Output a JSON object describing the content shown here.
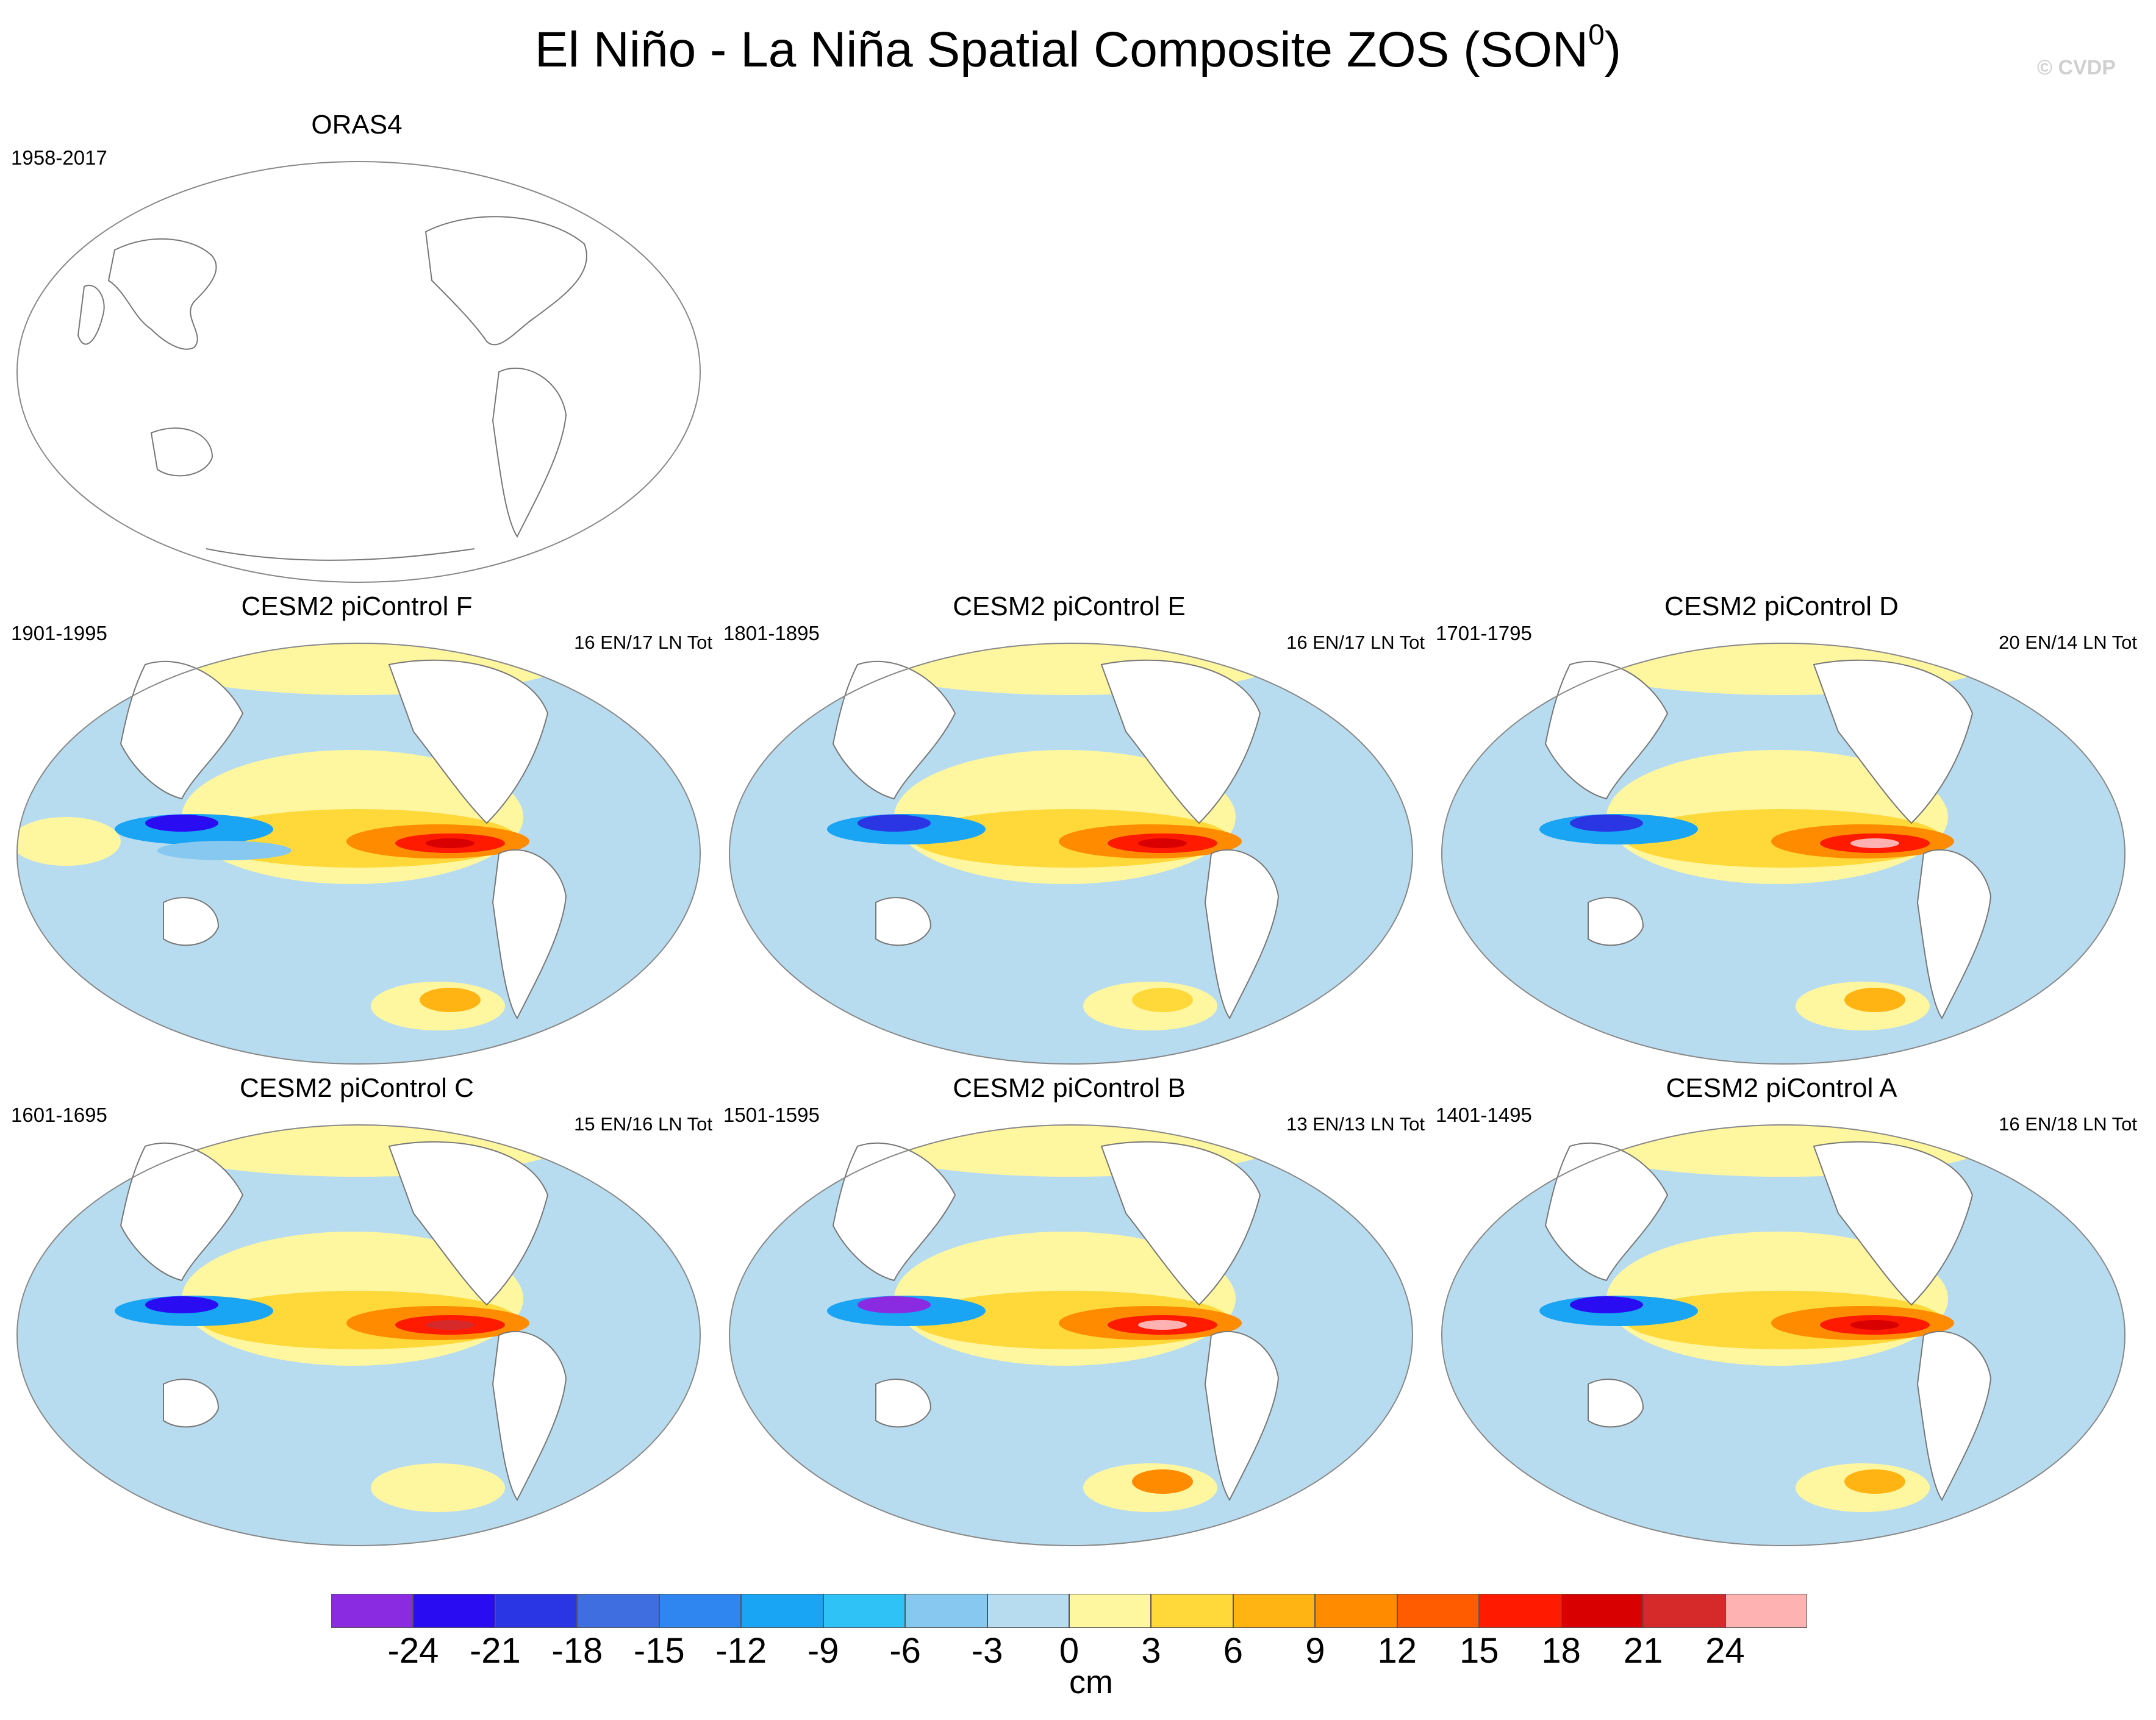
{
  "title": "El Niño - La Niña Spatial Composite ZOS (SON",
  "title_sup": "0",
  "title_close": ")",
  "watermark": "© CVDP",
  "panels": [
    {
      "title": "ORAS4",
      "years": "1958-2017",
      "events": "",
      "data_filled": false
    },
    {
      "title": "CESM2 piControl F",
      "years": "1901-1995",
      "events": "16 EN/17 LN Tot",
      "data_filled": true
    },
    {
      "title": "CESM2 piControl E",
      "years": "1801-1895",
      "events": "16 EN/17 LN Tot",
      "data_filled": true
    },
    {
      "title": "CESM2 piControl D",
      "years": "1701-1795",
      "events": "20 EN/14 LN Tot",
      "data_filled": true
    },
    {
      "title": "CESM2 piControl C",
      "years": "1601-1695",
      "events": "15 EN/16 LN Tot",
      "data_filled": true
    },
    {
      "title": "CESM2 piControl B",
      "years": "1501-1595",
      "events": "13 EN/13 LN Tot",
      "data_filled": true
    },
    {
      "title": "CESM2 piControl A",
      "years": "1401-1495",
      "events": "16 EN/18 LN Tot",
      "data_filled": true
    }
  ],
  "colorbar": {
    "labels": [
      "-24",
      "-21",
      "-18",
      "-15",
      "-12",
      "-9",
      "-6",
      "-3",
      "0",
      "3",
      "6",
      "9",
      "12",
      "15",
      "18",
      "21",
      "24"
    ],
    "colors": [
      "#8a2be2",
      "#2a0cf2",
      "#2a36e4",
      "#3f6ee0",
      "#2f86f0",
      "#1aa4f4",
      "#2ec2f7",
      "#86c8ef",
      "#b8dcef",
      "#fff6a0",
      "#ffd93a",
      "#ffb414",
      "#ff8c00",
      "#ff5c00",
      "#ff1a00",
      "#d80000",
      "#d62a2a",
      "#ffb2b2"
    ],
    "units": "cm"
  }
}
